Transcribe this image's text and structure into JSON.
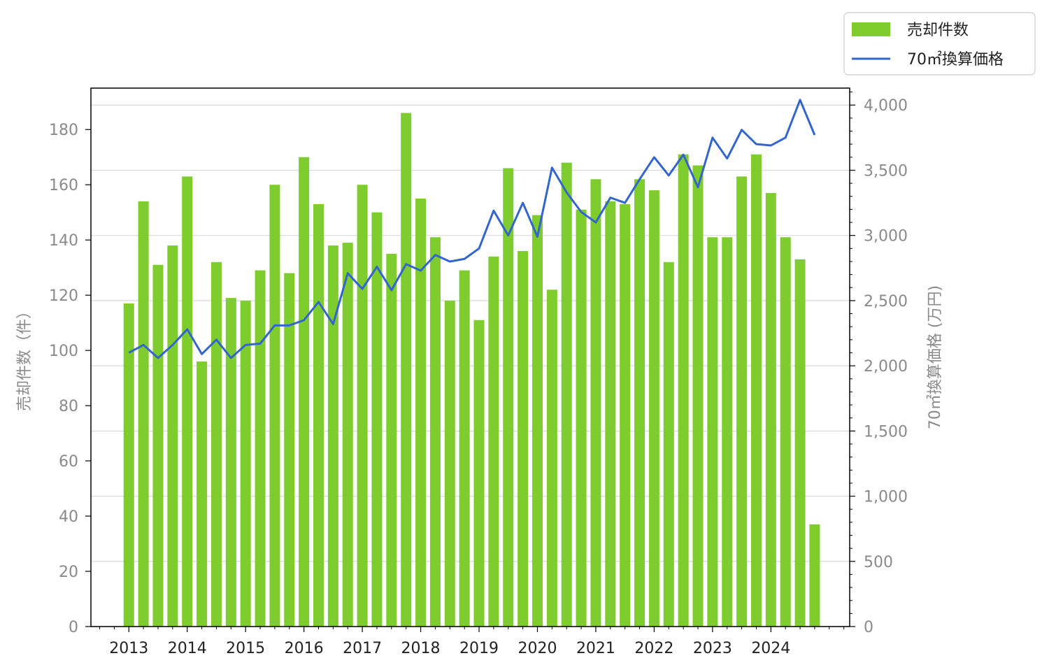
{
  "chart_data": {
    "type": "bar",
    "x": [
      2013.0,
      2013.25,
      2013.5,
      2013.75,
      2014.0,
      2014.25,
      2014.5,
      2014.75,
      2015.0,
      2015.25,
      2015.5,
      2015.75,
      2016.0,
      2016.25,
      2016.5,
      2016.75,
      2017.0,
      2017.25,
      2017.5,
      2017.75,
      2018.0,
      2018.25,
      2018.5,
      2018.75,
      2019.0,
      2019.25,
      2019.5,
      2019.75,
      2020.0,
      2020.25,
      2020.5,
      2020.75,
      2021.0,
      2021.25,
      2021.5,
      2021.75,
      2022.0,
      2022.25,
      2022.5,
      2022.75,
      2023.0,
      2023.25,
      2023.5,
      2023.75,
      2024.0,
      2024.25,
      2024.5,
      2024.75
    ],
    "x_ticks": [
      "2013",
      "2014",
      "2015",
      "2016",
      "2017",
      "2018",
      "2019",
      "2020",
      "2021",
      "2022",
      "2023",
      "2024"
    ],
    "series": [
      {
        "name": "売却件数",
        "type": "bar",
        "axis": "left",
        "color": "#7fcc2e",
        "values": [
          117,
          154,
          131,
          138,
          163,
          96,
          132,
          119,
          118,
          129,
          160,
          128,
          170,
          153,
          138,
          139,
          160,
          150,
          135,
          186,
          155,
          141,
          118,
          129,
          111,
          134,
          166,
          136,
          149,
          122,
          168,
          151,
          162,
          154,
          153,
          162,
          158,
          132,
          171,
          167,
          141,
          141,
          163,
          171,
          157,
          141,
          133,
          37
        ]
      },
      {
        "name": "70㎡換算価格",
        "type": "line",
        "axis": "right",
        "color": "#3366cc",
        "values": [
          2100,
          2160,
          2060,
          2160,
          2280,
          2090,
          2200,
          2060,
          2160,
          2170,
          2310,
          2310,
          2350,
          2490,
          2320,
          2710,
          2590,
          2760,
          2580,
          2780,
          2730,
          2850,
          2800,
          2820,
          2900,
          3190,
          3000,
          3250,
          2990,
          3520,
          3330,
          3180,
          3100,
          3290,
          3250,
          3430,
          3600,
          3460,
          3620,
          3370,
          3750,
          3590,
          3810,
          3700,
          3690,
          3750,
          4040,
          3770
        ]
      }
    ],
    "y_left": {
      "label": "売却件数（件）",
      "lim": [
        0,
        195
      ],
      "ticks": [
        "0",
        "20",
        "40",
        "60",
        "80",
        "100",
        "120",
        "140",
        "160",
        "180"
      ]
    },
    "y_right": {
      "label": "70㎡換算価格 (万円)",
      "lim": [
        0,
        4130
      ],
      "ticks": [
        "0",
        "500",
        "1,000",
        "1,500",
        "2,000",
        "2,500",
        "3,000",
        "3,500",
        "4,000"
      ]
    },
    "grid": "horizontal (right axis)",
    "legend": {
      "placement": "top-right outside",
      "items": [
        "売却件数",
        "70㎡換算価格"
      ]
    }
  }
}
